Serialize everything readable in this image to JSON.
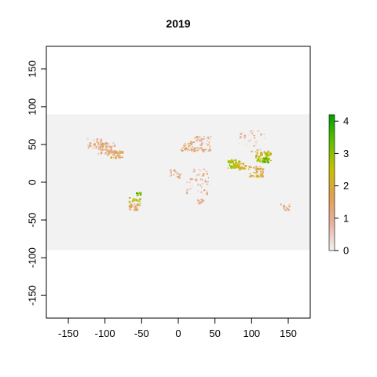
{
  "title": "2019",
  "map": {
    "type": "raster",
    "xlim": [
      -180,
      180
    ],
    "ylim": [
      -180,
      180
    ],
    "raster_extent": {
      "x": [
        -180,
        180
      ],
      "y": [
        -90,
        90
      ]
    },
    "background_color": "#f2f2f2",
    "x_ticks": [
      -150,
      -100,
      -50,
      0,
      50,
      100,
      150
    ],
    "y_ticks": [
      -150,
      -100,
      -50,
      0,
      50,
      100,
      150
    ],
    "x_tick_labels": [
      "-150",
      "-100",
      "-50",
      "0",
      "50",
      "100",
      "150"
    ],
    "y_tick_labels": [
      "-150",
      "-100",
      "-50",
      "0",
      "50",
      "100",
      "150"
    ]
  },
  "legend": {
    "range": [
      0,
      4.2
    ],
    "ticks": [
      0,
      1,
      2,
      3,
      4
    ],
    "tick_labels": [
      "0",
      "1",
      "2",
      "3",
      "4"
    ],
    "color_stops": [
      "#f2f2f2",
      "#e8b0a0",
      "#e0a050",
      "#c8c000",
      "#60c000",
      "#00a000"
    ]
  },
  "patches": [
    {
      "lon": -100,
      "lat": 45,
      "value": 1.2,
      "spread": 12,
      "n": 60
    },
    {
      "lon": -85,
      "lat": 38,
      "value": 1.6,
      "spread": 8,
      "n": 40
    },
    {
      "lon": -115,
      "lat": 52,
      "value": 0.8,
      "spread": 10,
      "n": 35
    },
    {
      "lon": -60,
      "lat": -25,
      "value": 2.5,
      "spread": 8,
      "n": 25
    },
    {
      "lon": -55,
      "lat": -15,
      "value": 3.2,
      "spread": 4,
      "n": 10
    },
    {
      "lon": -62,
      "lat": -32,
      "value": 1.4,
      "spread": 6,
      "n": 25
    },
    {
      "lon": 30,
      "lat": 52,
      "value": 1.0,
      "spread": 14,
      "n": 60
    },
    {
      "lon": 10,
      "lat": 48,
      "value": 1.2,
      "spread": 8,
      "n": 25
    },
    {
      "lon": 75,
      "lat": 25,
      "value": 2.7,
      "spread": 8,
      "n": 60
    },
    {
      "lon": 85,
      "lat": 22,
      "value": 2.0,
      "spread": 6,
      "n": 25
    },
    {
      "lon": 115,
      "lat": 35,
      "value": 2.5,
      "spread": 10,
      "n": 60
    },
    {
      "lon": 118,
      "lat": 30,
      "value": 3.3,
      "spread": 4,
      "n": 20
    },
    {
      "lon": 105,
      "lat": 15,
      "value": 1.8,
      "spread": 10,
      "n": 40
    },
    {
      "lon": 100,
      "lat": 55,
      "value": 0.6,
      "spread": 20,
      "n": 30
    },
    {
      "lon": 145,
      "lat": -32,
      "value": 1.0,
      "spread": 6,
      "n": 15
    },
    {
      "lon": 25,
      "lat": -5,
      "value": 0.8,
      "spread": 15,
      "n": 25
    },
    {
      "lon": 30,
      "lat": 10,
      "value": 1.0,
      "spread": 12,
      "n": 20
    },
    {
      "lon": -5,
      "lat": 12,
      "value": 1.2,
      "spread": 8,
      "n": 15
    },
    {
      "lon": 28,
      "lat": -25,
      "value": 1.2,
      "spread": 5,
      "n": 12
    }
  ]
}
